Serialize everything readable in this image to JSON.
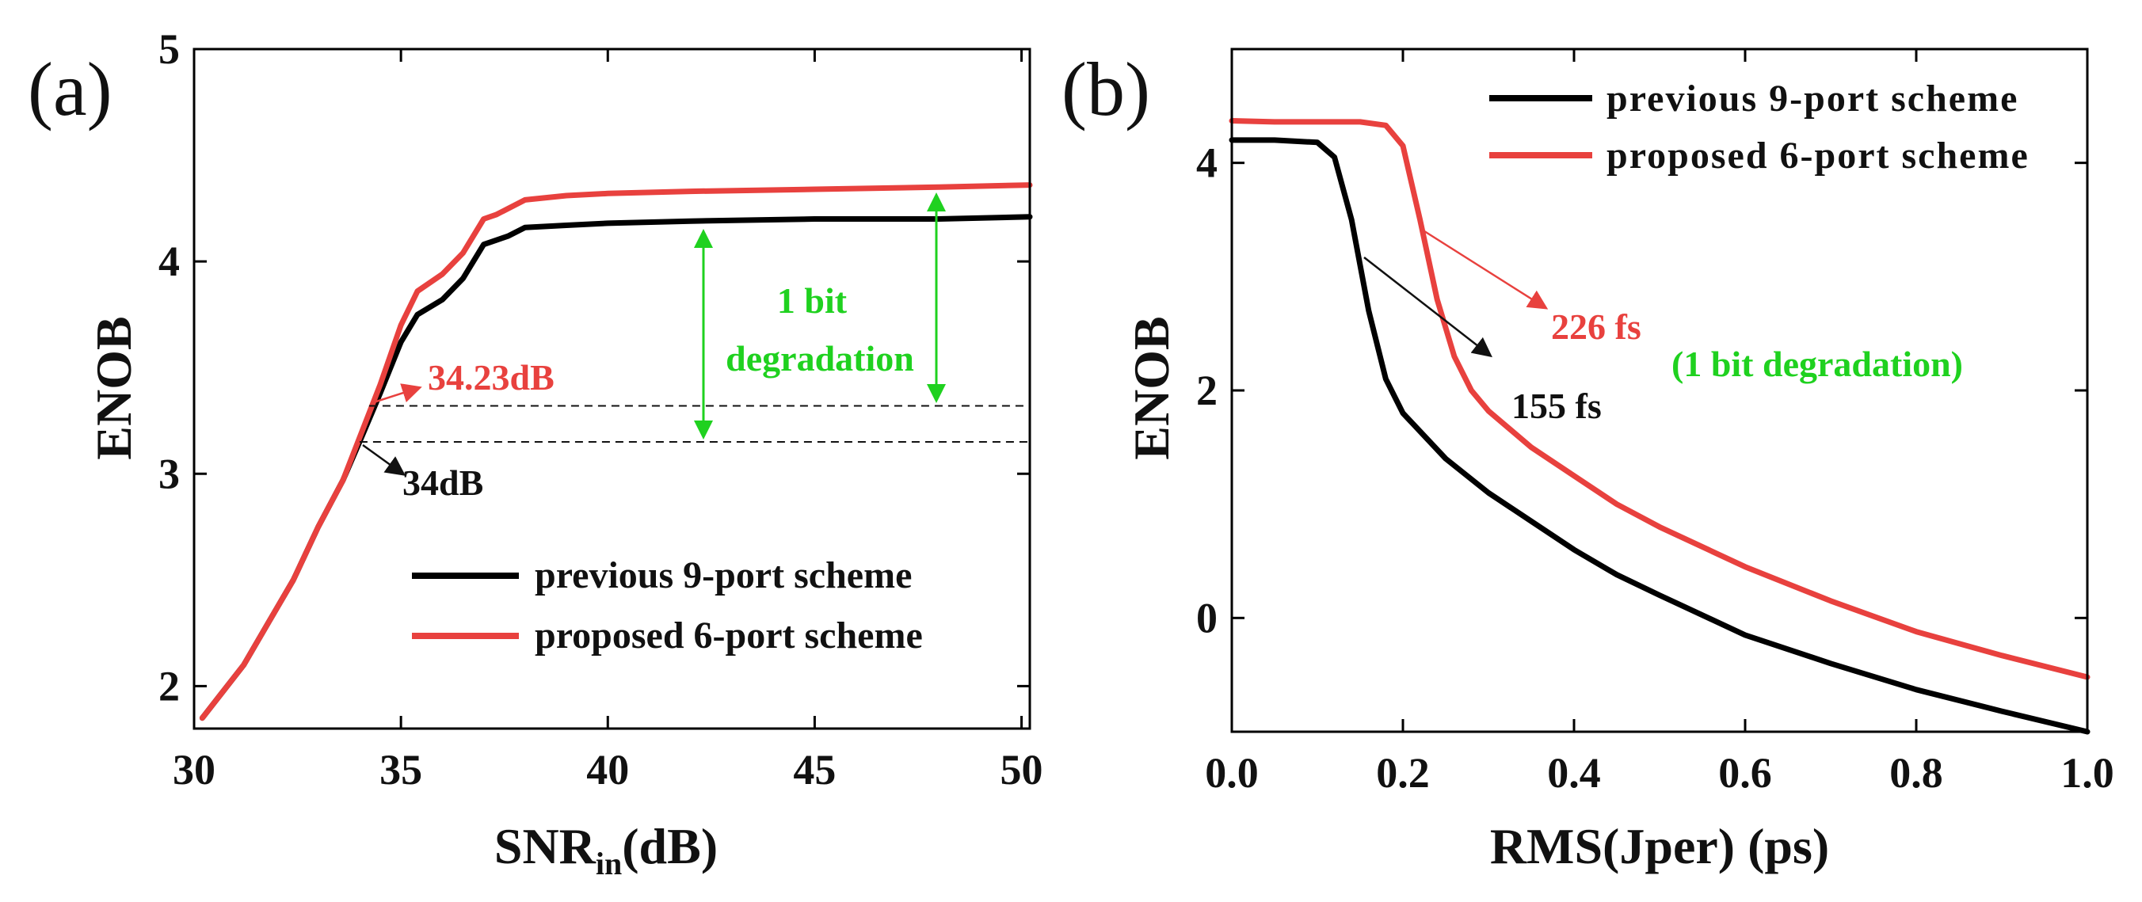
{
  "chart_data": [
    {
      "panel": "(a)",
      "type": "line",
      "xlabel": "SNR",
      "xlabel_sub": "in",
      "xlabel_suffix": "(dB)",
      "ylabel": "ENOB",
      "xlim": [
        30,
        50.2
      ],
      "ylim": [
        1.8,
        5
      ],
      "xticks": [
        "30",
        "35",
        "40",
        "45",
        "50"
      ],
      "yticks": [
        "2",
        "3",
        "4",
        "5"
      ],
      "legend_position": "bottom-right",
      "series": [
        {
          "name": "previous 9-port scheme",
          "color": "#000000",
          "x": [
            30.2,
            30.6,
            31.2,
            31.8,
            32.4,
            33.0,
            33.6,
            34.0,
            34.5,
            35.0,
            35.4,
            36.0,
            36.5,
            37.0,
            37.3,
            37.6,
            38.0,
            39.0,
            40.0,
            42.0,
            45.0,
            48.0,
            50.2
          ],
          "y": [
            1.85,
            1.95,
            2.1,
            2.3,
            2.5,
            2.75,
            2.97,
            3.15,
            3.38,
            3.62,
            3.75,
            3.82,
            3.92,
            4.08,
            4.1,
            4.12,
            4.16,
            4.17,
            4.18,
            4.19,
            4.2,
            4.2,
            4.21
          ]
        },
        {
          "name": "proposed 6-port scheme",
          "color": "#e8413e",
          "x": [
            30.2,
            30.6,
            31.2,
            31.8,
            32.4,
            33.0,
            33.6,
            34.0,
            34.5,
            35.0,
            35.4,
            36.0,
            36.5,
            37.0,
            37.3,
            37.6,
            38.0,
            39.0,
            40.0,
            42.0,
            45.0,
            48.0,
            50.2
          ],
          "y": [
            1.85,
            1.95,
            2.1,
            2.3,
            2.5,
            2.75,
            2.97,
            3.17,
            3.42,
            3.7,
            3.86,
            3.94,
            4.04,
            4.2,
            4.22,
            4.25,
            4.29,
            4.31,
            4.32,
            4.33,
            4.34,
            4.35,
            4.36
          ]
        }
      ],
      "reference_lines": [
        {
          "y": 3.32,
          "x_from": 34.23,
          "x_to": 50.2,
          "style": "dashed"
        },
        {
          "y": 3.15,
          "x_from": 34.0,
          "x_to": 50.2,
          "style": "dashed"
        }
      ],
      "annotations": [
        {
          "text": "34.23dB",
          "color": "#e8413e"
        },
        {
          "text": "34dB",
          "color": "#111111"
        },
        {
          "text": "1 bit",
          "color": "#1fd11f"
        },
        {
          "text": "degradation",
          "color": "#1fd11f"
        }
      ]
    },
    {
      "panel": "(b)",
      "type": "line",
      "xlabel": "RMS(Jper) (ps)",
      "ylabel": "ENOB",
      "xlim": [
        0,
        1.0
      ],
      "ylim": [
        -1,
        5
      ],
      "xticks": [
        "0.0",
        "0.2",
        "0.4",
        "0.6",
        "0.8",
        "1.0"
      ],
      "yticks": [
        "0",
        "2",
        "4"
      ],
      "legend_position": "top-right",
      "series": [
        {
          "name": "previous 9-port scheme",
          "color": "#000000",
          "x": [
            0.0,
            0.05,
            0.1,
            0.12,
            0.14,
            0.16,
            0.18,
            0.2,
            0.25,
            0.3,
            0.35,
            0.4,
            0.45,
            0.5,
            0.6,
            0.7,
            0.8,
            0.9,
            1.0
          ],
          "y": [
            4.2,
            4.2,
            4.18,
            4.05,
            3.5,
            2.7,
            2.1,
            1.8,
            1.4,
            1.1,
            0.85,
            0.6,
            0.38,
            0.2,
            -0.15,
            -0.4,
            -0.63,
            -0.82,
            -1.0
          ]
        },
        {
          "name": "proposed 6-port scheme",
          "color": "#e8413e",
          "x": [
            0.0,
            0.05,
            0.1,
            0.15,
            0.18,
            0.2,
            0.22,
            0.24,
            0.26,
            0.28,
            0.3,
            0.35,
            0.4,
            0.45,
            0.5,
            0.6,
            0.7,
            0.8,
            0.9,
            1.0
          ],
          "y": [
            4.37,
            4.36,
            4.36,
            4.36,
            4.33,
            4.15,
            3.5,
            2.8,
            2.3,
            2.0,
            1.82,
            1.5,
            1.25,
            1.0,
            0.8,
            0.45,
            0.15,
            -0.12,
            -0.33,
            -0.52
          ]
        }
      ],
      "annotations": [
        {
          "text": "226 fs",
          "color": "#e8413e"
        },
        {
          "text": "(1 bit degradation)",
          "color": "#1fd11f"
        },
        {
          "text": "155 fs",
          "color": "#111111"
        }
      ]
    }
  ]
}
